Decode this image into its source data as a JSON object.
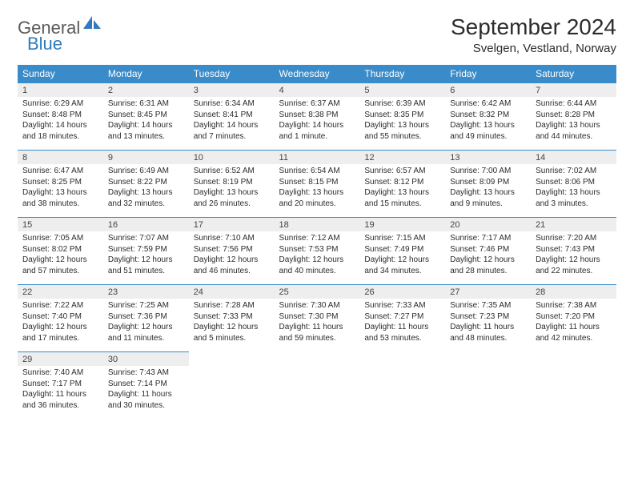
{
  "logo": {
    "text_general": "General",
    "text_blue": "Blue"
  },
  "title": "September 2024",
  "location": "Svelgen, Vestland, Norway",
  "colors": {
    "header_bg": "#3a8bc9",
    "header_text": "#ffffff",
    "daynum_bg": "#eeeeee",
    "border": "#3a8bc9",
    "logo_gray": "#5a5a5a",
    "logo_blue": "#2f7bbd",
    "text": "#2c2c2c",
    "page_bg": "#ffffff"
  },
  "weekdays": [
    "Sunday",
    "Monday",
    "Tuesday",
    "Wednesday",
    "Thursday",
    "Friday",
    "Saturday"
  ],
  "weeks": [
    [
      {
        "n": "1",
        "sr": "6:29 AM",
        "ss": "8:48 PM",
        "dl": "14 hours and 18 minutes."
      },
      {
        "n": "2",
        "sr": "6:31 AM",
        "ss": "8:45 PM",
        "dl": "14 hours and 13 minutes."
      },
      {
        "n": "3",
        "sr": "6:34 AM",
        "ss": "8:41 PM",
        "dl": "14 hours and 7 minutes."
      },
      {
        "n": "4",
        "sr": "6:37 AM",
        "ss": "8:38 PM",
        "dl": "14 hours and 1 minute."
      },
      {
        "n": "5",
        "sr": "6:39 AM",
        "ss": "8:35 PM",
        "dl": "13 hours and 55 minutes."
      },
      {
        "n": "6",
        "sr": "6:42 AM",
        "ss": "8:32 PM",
        "dl": "13 hours and 49 minutes."
      },
      {
        "n": "7",
        "sr": "6:44 AM",
        "ss": "8:28 PM",
        "dl": "13 hours and 44 minutes."
      }
    ],
    [
      {
        "n": "8",
        "sr": "6:47 AM",
        "ss": "8:25 PM",
        "dl": "13 hours and 38 minutes."
      },
      {
        "n": "9",
        "sr": "6:49 AM",
        "ss": "8:22 PM",
        "dl": "13 hours and 32 minutes."
      },
      {
        "n": "10",
        "sr": "6:52 AM",
        "ss": "8:19 PM",
        "dl": "13 hours and 26 minutes."
      },
      {
        "n": "11",
        "sr": "6:54 AM",
        "ss": "8:15 PM",
        "dl": "13 hours and 20 minutes."
      },
      {
        "n": "12",
        "sr": "6:57 AM",
        "ss": "8:12 PM",
        "dl": "13 hours and 15 minutes."
      },
      {
        "n": "13",
        "sr": "7:00 AM",
        "ss": "8:09 PM",
        "dl": "13 hours and 9 minutes."
      },
      {
        "n": "14",
        "sr": "7:02 AM",
        "ss": "8:06 PM",
        "dl": "13 hours and 3 minutes."
      }
    ],
    [
      {
        "n": "15",
        "sr": "7:05 AM",
        "ss": "8:02 PM",
        "dl": "12 hours and 57 minutes."
      },
      {
        "n": "16",
        "sr": "7:07 AM",
        "ss": "7:59 PM",
        "dl": "12 hours and 51 minutes."
      },
      {
        "n": "17",
        "sr": "7:10 AM",
        "ss": "7:56 PM",
        "dl": "12 hours and 46 minutes."
      },
      {
        "n": "18",
        "sr": "7:12 AM",
        "ss": "7:53 PM",
        "dl": "12 hours and 40 minutes."
      },
      {
        "n": "19",
        "sr": "7:15 AM",
        "ss": "7:49 PM",
        "dl": "12 hours and 34 minutes."
      },
      {
        "n": "20",
        "sr": "7:17 AM",
        "ss": "7:46 PM",
        "dl": "12 hours and 28 minutes."
      },
      {
        "n": "21",
        "sr": "7:20 AM",
        "ss": "7:43 PM",
        "dl": "12 hours and 22 minutes."
      }
    ],
    [
      {
        "n": "22",
        "sr": "7:22 AM",
        "ss": "7:40 PM",
        "dl": "12 hours and 17 minutes."
      },
      {
        "n": "23",
        "sr": "7:25 AM",
        "ss": "7:36 PM",
        "dl": "12 hours and 11 minutes."
      },
      {
        "n": "24",
        "sr": "7:28 AM",
        "ss": "7:33 PM",
        "dl": "12 hours and 5 minutes."
      },
      {
        "n": "25",
        "sr": "7:30 AM",
        "ss": "7:30 PM",
        "dl": "11 hours and 59 minutes."
      },
      {
        "n": "26",
        "sr": "7:33 AM",
        "ss": "7:27 PM",
        "dl": "11 hours and 53 minutes."
      },
      {
        "n": "27",
        "sr": "7:35 AM",
        "ss": "7:23 PM",
        "dl": "11 hours and 48 minutes."
      },
      {
        "n": "28",
        "sr": "7:38 AM",
        "ss": "7:20 PM",
        "dl": "11 hours and 42 minutes."
      }
    ],
    [
      {
        "n": "29",
        "sr": "7:40 AM",
        "ss": "7:17 PM",
        "dl": "11 hours and 36 minutes."
      },
      {
        "n": "30",
        "sr": "7:43 AM",
        "ss": "7:14 PM",
        "dl": "11 hours and 30 minutes."
      },
      null,
      null,
      null,
      null,
      null
    ]
  ],
  "labels": {
    "sunrise": "Sunrise: ",
    "sunset": "Sunset: ",
    "daylight": "Daylight: "
  }
}
